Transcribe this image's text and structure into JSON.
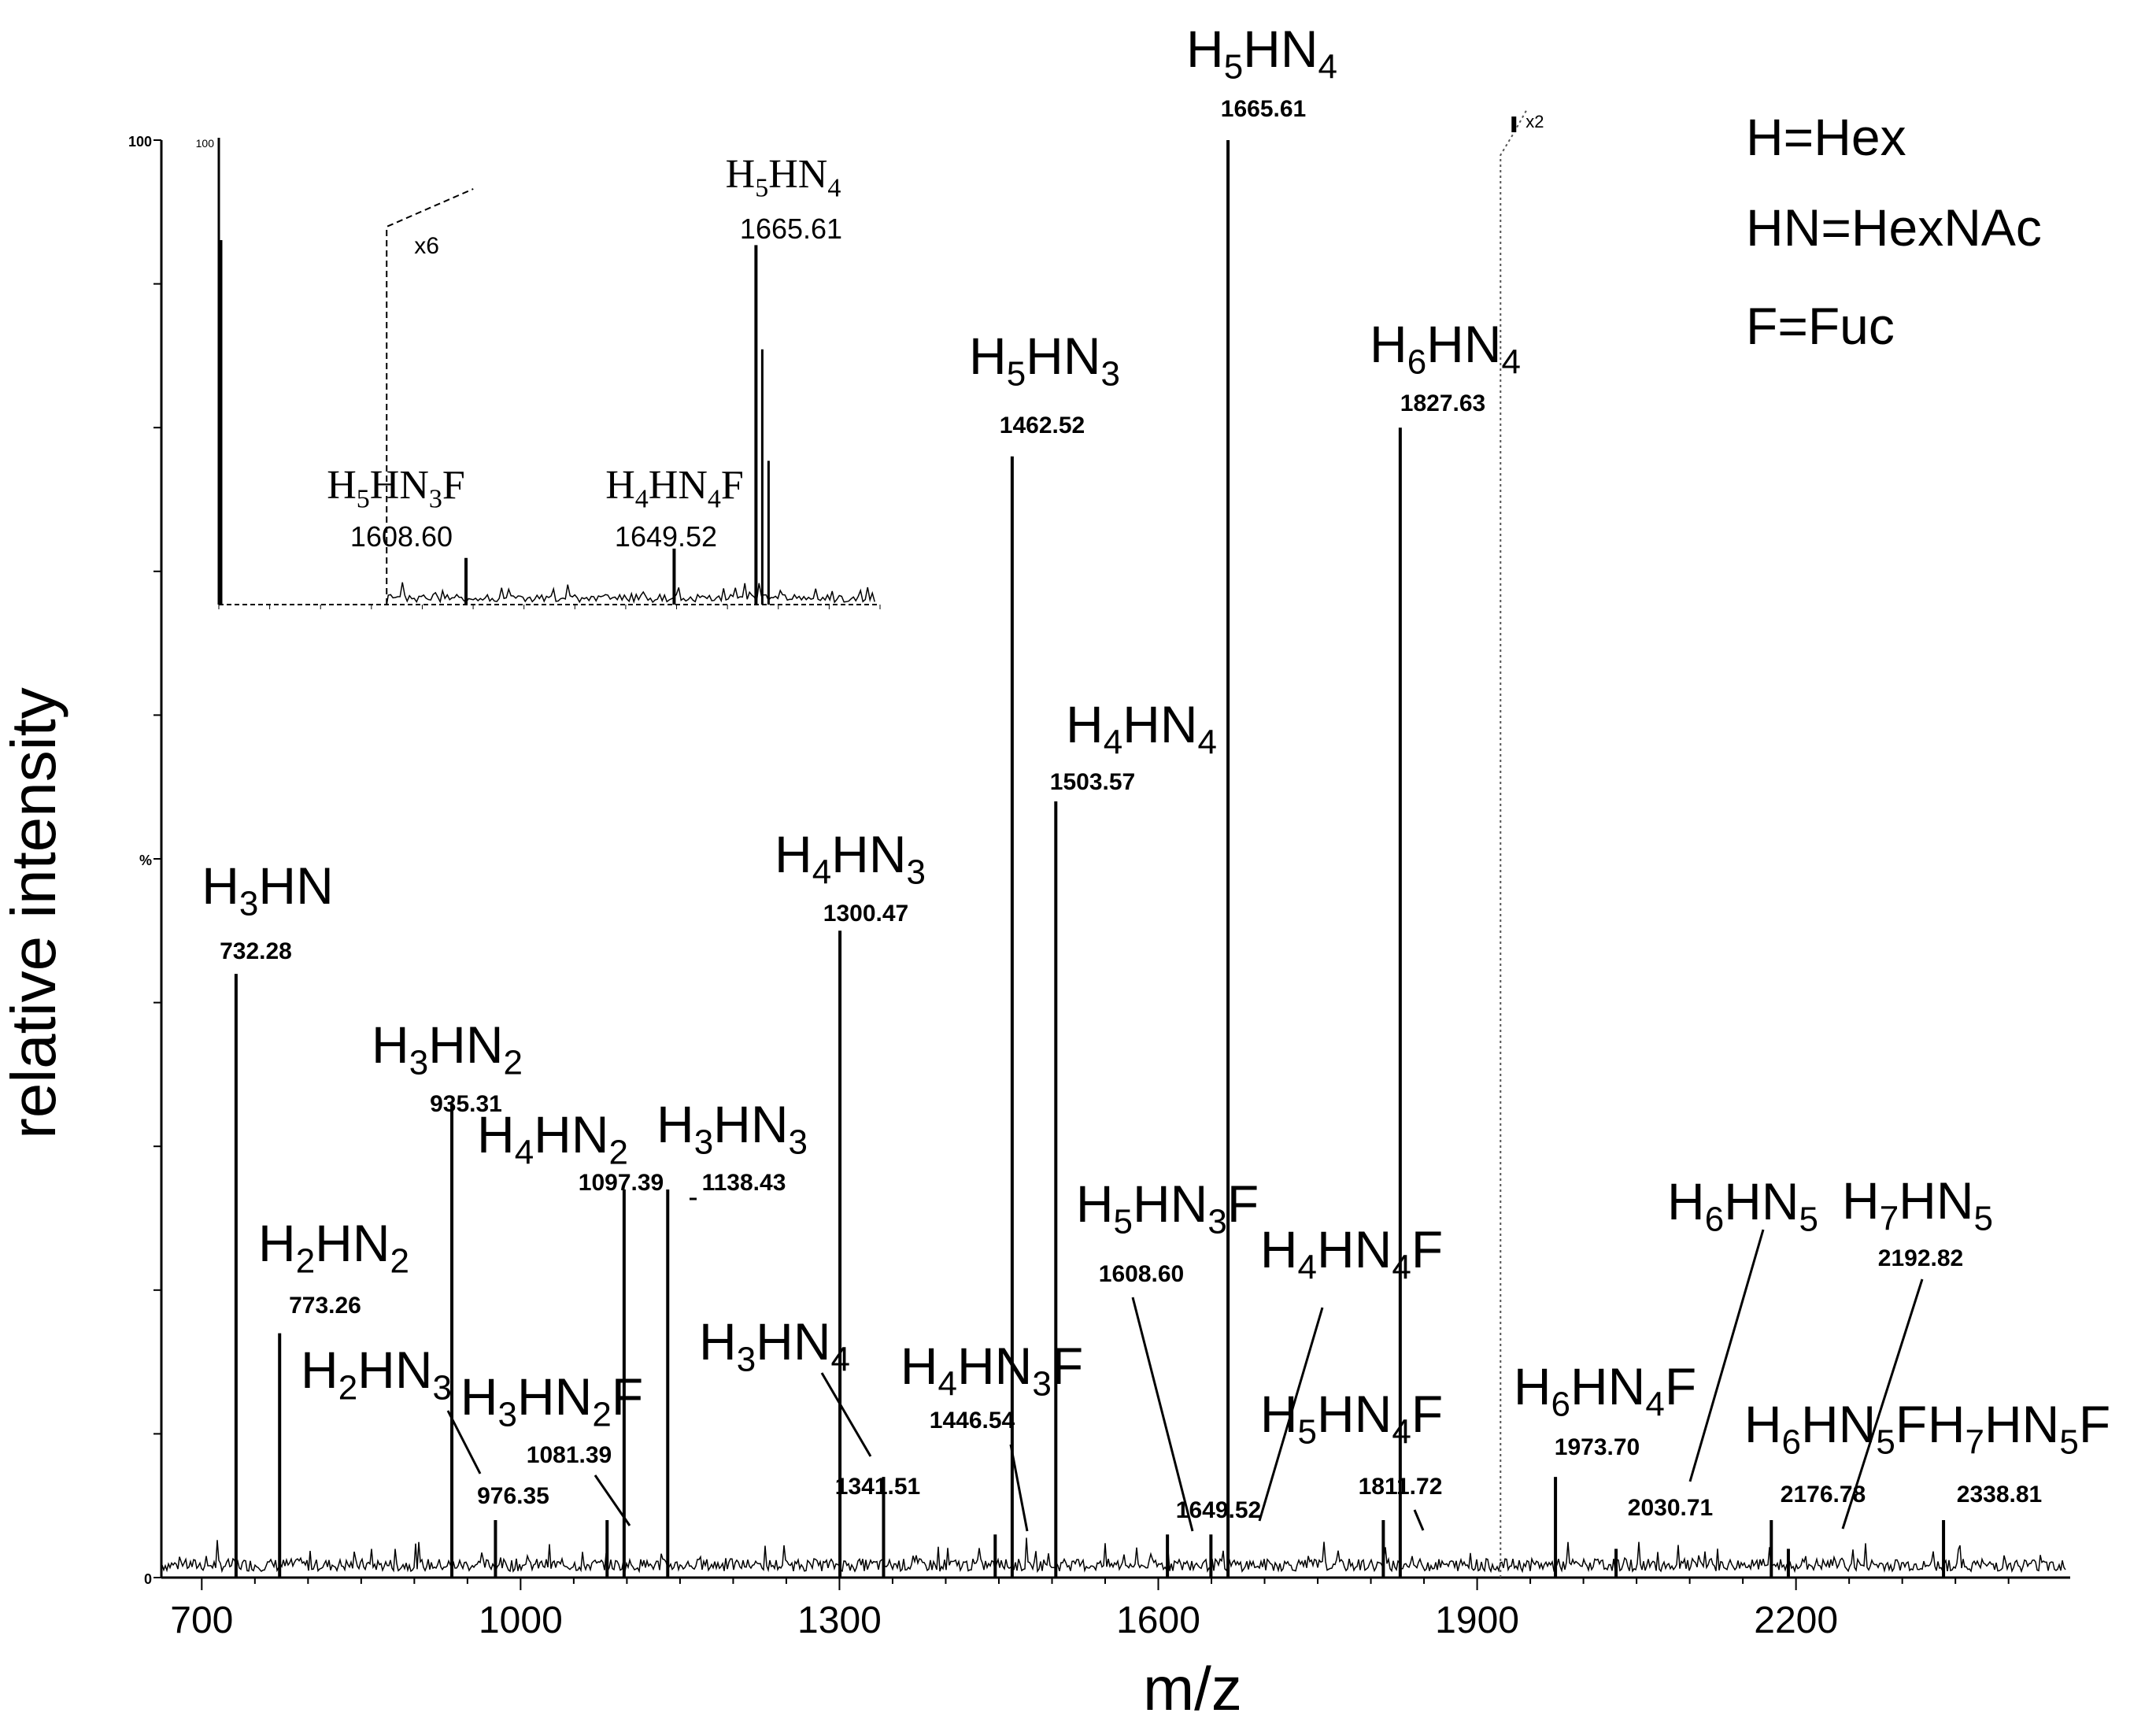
{
  "chart_data": {
    "type": "line",
    "subtype": "mass-spectrum",
    "xlabel": "m/z",
    "ylabel": "relative intensity",
    "xlim": [
      662,
      2458
    ],
    "ylim": [
      0,
      100
    ],
    "x_ticks": [
      700,
      1000,
      1300,
      1600,
      1900,
      2200
    ],
    "y_tick_labels": [
      {
        "value": 0,
        "label": "0"
      },
      {
        "value": 50,
        "label": "%"
      },
      {
        "value": 100,
        "label": "100"
      }
    ],
    "legend": [
      "H=Hex",
      "HN=HexNAc",
      "F=Fuc"
    ],
    "zoom_marker": {
      "label": "x2",
      "from": 1922
    },
    "peaks": [
      {
        "mz": 732.28,
        "value": 42,
        "formula": [
          "H",
          "3",
          "HN",
          ""
        ],
        "mass": "732.28"
      },
      {
        "mz": 773.26,
        "value": 17,
        "formula": [
          "H",
          "2",
          "HN",
          "2"
        ],
        "mass": "773.26"
      },
      {
        "mz": 935.31,
        "value": 33,
        "formula": [
          "H",
          "3",
          "HN",
          "2"
        ],
        "mass": "935.31"
      },
      {
        "mz": 976.35,
        "value": 4,
        "formula": [
          "H",
          "2",
          "HN",
          "3"
        ],
        "mass": "976.35"
      },
      {
        "mz": 1081.39,
        "value": 4,
        "formula": [
          "H",
          "3",
          "HN",
          "2",
          "F"
        ],
        "mass": "1081.39"
      },
      {
        "mz": 1097.39,
        "value": 27,
        "formula": [
          "H",
          "4",
          "HN",
          "2"
        ],
        "mass": "1097.39"
      },
      {
        "mz": 1138.43,
        "value": 27,
        "formula": [
          "H",
          "3",
          "HN",
          "3"
        ],
        "mass": "1138.43"
      },
      {
        "mz": 1300.47,
        "value": 45,
        "formula": [
          "H",
          "4",
          "HN",
          "3"
        ],
        "mass": "1300.47"
      },
      {
        "mz": 1341.51,
        "value": 7,
        "formula": [
          "H",
          "3",
          "HN",
          "4"
        ],
        "mass": "1341.51"
      },
      {
        "mz": 1446.54,
        "value": 3,
        "formula": [
          "H",
          "4",
          "HN",
          "3",
          "F"
        ],
        "mass": "1446.54"
      },
      {
        "mz": 1462.52,
        "value": 78,
        "formula": [
          "H",
          "5",
          "HN",
          "3"
        ],
        "mass": "1462.52"
      },
      {
        "mz": 1503.57,
        "value": 54,
        "formula": [
          "H",
          "4",
          "HN",
          "4"
        ],
        "mass": "1503.57"
      },
      {
        "mz": 1608.6,
        "value": 3,
        "formula": [
          "H",
          "5",
          "HN",
          "3",
          "F"
        ],
        "mass": "1608.60"
      },
      {
        "mz": 1649.52,
        "value": 3,
        "formula": [
          "H",
          "4",
          "HN",
          "4",
          "F"
        ],
        "mass": "1649.52"
      },
      {
        "mz": 1665.61,
        "value": 100,
        "formula": [
          "H",
          "5",
          "HN",
          "4"
        ],
        "mass": "1665.61"
      },
      {
        "mz": 1811.72,
        "value": 4,
        "formula": [
          "H",
          "5",
          "HN",
          "4",
          "F"
        ],
        "mass": "1811.72"
      },
      {
        "mz": 1827.63,
        "value": 80,
        "formula": [
          "H",
          "6",
          "HN",
          "4"
        ],
        "mass": "1827.63"
      },
      {
        "mz": 1973.7,
        "value": 7,
        "formula": [
          "H",
          "6",
          "HN",
          "4",
          "F"
        ],
        "mass": "1973.70"
      },
      {
        "mz": 2030.71,
        "value": 2,
        "formula": [
          "H",
          "6",
          "HN",
          "5"
        ],
        "mass": "2030.71"
      },
      {
        "mz": 2176.78,
        "value": 4,
        "formula": [
          "H",
          "6",
          "HN",
          "5",
          "F"
        ],
        "mass": "2176.78"
      },
      {
        "mz": 2192.82,
        "value": 2,
        "formula": [
          "H",
          "7",
          "HN",
          "5"
        ],
        "mass": "2192.82"
      },
      {
        "mz": 2338.81,
        "value": 4,
        "formula": [
          "H",
          "7",
          "HN",
          "5",
          "F"
        ],
        "mass": "2338.81"
      }
    ],
    "inset": {
      "xlim": [
        1560,
        1690
      ],
      "ylim": [
        0,
        100
      ],
      "y_tick_label": "100",
      "zoom_marker": {
        "label": "x6",
        "from": 1593
      },
      "peaks": [
        {
          "mz": 1608.6,
          "value": 10,
          "formula": [
            "H",
            "5",
            "HN",
            "3",
            "F"
          ],
          "mass": "1608.60"
        },
        {
          "mz": 1649.52,
          "value": 12,
          "formula": [
            "H",
            "4",
            "HN",
            "4",
            "F"
          ],
          "mass": "1649.52"
        },
        {
          "mz": 1665.61,
          "value": 77,
          "formula": [
            "H",
            "5",
            "HN",
            "4"
          ],
          "mass": "1665.61"
        }
      ]
    }
  }
}
